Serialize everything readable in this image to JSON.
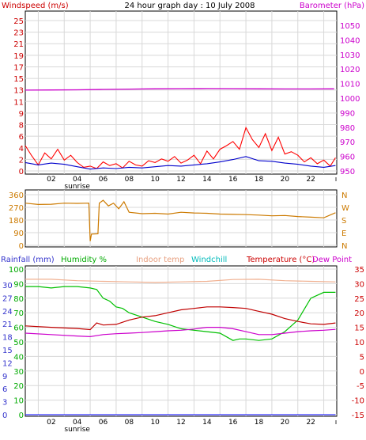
{
  "title": "24 hour graph day : 10 July 2008",
  "chart_data": [
    {
      "type": "line",
      "title": "24 hour graph day : 10 July 2008",
      "left_label": "Windspeed (m/s)",
      "right_label": "Barometer (hPa)",
      "left_ticks": [
        "25",
        "23",
        "21",
        "19",
        "17",
        "15",
        "13",
        "11",
        "9",
        "8",
        "6",
        "4",
        "2",
        "0"
      ],
      "right_ticks": [
        "1050",
        "1040",
        "1030",
        "1020",
        "1010",
        "1000",
        "990",
        "980",
        "970",
        "960",
        "950"
      ],
      "x_ticks": [
        "02",
        "04",
        "06",
        "08",
        "10",
        "12",
        "14",
        "16",
        "18",
        "20",
        "22"
      ],
      "x_note": "sunrise",
      "ylim_left": [
        0,
        25
      ],
      "ylim_right": [
        950,
        1050
      ],
      "series": [
        {
          "name": "Barometer (hPa)",
          "axis": "right",
          "color": "#cc00cc",
          "x": [
            0,
            2,
            4,
            6,
            8,
            10,
            12,
            14,
            16,
            18,
            20,
            22,
            23.8
          ],
          "values": [
            1005.5,
            1005.6,
            1005.7,
            1006.0,
            1006.2,
            1006.4,
            1006.5,
            1006.6,
            1006.5,
            1006.4,
            1006.3,
            1006.3,
            1006.4
          ]
        },
        {
          "name": "Windspeed (m/s)",
          "axis": "left",
          "color": "#ff0000",
          "x": [
            0,
            0.5,
            1,
            1.5,
            2,
            2.5,
            3,
            3.5,
            4,
            4.5,
            5,
            5.5,
            6,
            6.5,
            7,
            7.5,
            8,
            8.5,
            9,
            9.5,
            10,
            10.5,
            11,
            11.5,
            12,
            12.5,
            13,
            13.5,
            14,
            14.5,
            15,
            15.5,
            16,
            16.5,
            17,
            17.5,
            18,
            18.5,
            19,
            19.5,
            20,
            20.5,
            21,
            21.5,
            22,
            22.5,
            23,
            23.5,
            23.9
          ],
          "values": [
            4.2,
            2.5,
            1.0,
            3.0,
            2.0,
            3.6,
            1.8,
            2.6,
            1.4,
            0.6,
            0.8,
            0.4,
            1.5,
            0.9,
            1.2,
            0.5,
            1.6,
            1.0,
            0.8,
            1.7,
            1.4,
            2.0,
            1.6,
            2.4,
            1.3,
            1.8,
            2.6,
            1.2,
            3.3,
            2.0,
            3.6,
            4.2,
            4.9,
            3.6,
            7.2,
            5.2,
            3.9,
            6.2,
            3.4,
            5.6,
            2.8,
            3.2,
            2.6,
            1.5,
            2.2,
            1.2,
            1.8,
            0.8,
            2.2
          ]
        },
        {
          "name": "Average windspeed",
          "axis": "left",
          "color": "#0000cc",
          "x": [
            0,
            1,
            2,
            3,
            4,
            5,
            6,
            7,
            8,
            9,
            10,
            11,
            12,
            13,
            14,
            15,
            16,
            17,
            18,
            19,
            20,
            21,
            22,
            23,
            23.9
          ],
          "values": [
            1.4,
            1.0,
            1.3,
            1.1,
            0.7,
            0.3,
            0.5,
            0.4,
            0.6,
            0.5,
            0.7,
            0.9,
            0.8,
            1.0,
            1.2,
            1.5,
            1.9,
            2.4,
            1.7,
            1.6,
            1.3,
            1.1,
            0.8,
            0.6,
            0.9
          ]
        }
      ]
    },
    {
      "type": "line",
      "left_ticks": [
        "360",
        "270",
        "180",
        "90",
        "0"
      ],
      "right_ticks": [
        "N",
        "W",
        "S",
        "E",
        "N"
      ],
      "ylim": [
        0,
        360
      ],
      "series": [
        {
          "name": "Wind direction",
          "color": "#cc7a00",
          "x": [
            0,
            1,
            2,
            3,
            4,
            4.9,
            5.0,
            5.1,
            5.6,
            5.7,
            6.0,
            6.4,
            6.8,
            7.2,
            7.6,
            8,
            9,
            10,
            11,
            12,
            13,
            14,
            15,
            16,
            17,
            18,
            19,
            20,
            21,
            22,
            23,
            23.9
          ],
          "values": [
            300,
            290,
            292,
            300,
            298,
            300,
            30,
            80,
            82,
            300,
            320,
            280,
            300,
            260,
            310,
            235,
            225,
            228,
            222,
            235,
            230,
            228,
            222,
            220,
            218,
            215,
            210,
            212,
            205,
            200,
            196,
            232
          ]
        }
      ]
    },
    {
      "type": "line",
      "labels": [
        "Rainfall (mm)",
        "Humidity %",
        "Indoor temp",
        "Windchill",
        "Temperature (°C)",
        "Dew Point"
      ],
      "left_ticks_rain": [
        "30",
        "27",
        "24",
        "21",
        "18",
        "15",
        "12",
        "9",
        "6",
        "3",
        "0"
      ],
      "left_ticks_humidity": [
        "100",
        "90",
        "80",
        "70",
        "60",
        "50",
        "40",
        "30",
        "20",
        "10",
        "0"
      ],
      "right_ticks_temp": [
        "35",
        "30",
        "25",
        "20",
        "15",
        "10",
        "5",
        "0",
        "-5",
        "-10",
        "-15"
      ],
      "ylim_humidity": [
        0,
        100
      ],
      "ylim_temp": [
        -15,
        35
      ],
      "series": [
        {
          "name": "Indoor temp",
          "axis": "temp",
          "color": "#f0b090",
          "x": [
            0,
            2,
            4,
            6,
            8,
            10,
            12,
            14,
            16,
            18,
            20,
            22,
            23.9
          ],
          "values": [
            31.5,
            31.5,
            31.0,
            30.8,
            30.6,
            30.4,
            30.6,
            30.8,
            31.4,
            31.5,
            31.0,
            30.8,
            30.6
          ]
        },
        {
          "name": "Humidity %",
          "axis": "humidity",
          "color": "#00c000",
          "x": [
            0,
            1,
            2,
            3,
            4,
            5,
            5.5,
            6,
            6.5,
            7,
            7.5,
            8,
            9,
            10,
            11,
            12,
            13,
            14,
            15,
            16,
            16.5,
            17,
            18,
            19,
            20,
            21,
            22,
            23,
            23.9
          ],
          "values": [
            88,
            88,
            87,
            88,
            88,
            87,
            86,
            80,
            78,
            74,
            73,
            70,
            67,
            64,
            62,
            59,
            58,
            57,
            56,
            51,
            52,
            52,
            51,
            52,
            57,
            65,
            80,
            84,
            84
          ]
        },
        {
          "name": "Temperature (°C)",
          "axis": "temp",
          "color": "#c00000",
          "x": [
            0,
            2,
            4,
            5,
            5.5,
            6,
            7,
            8,
            9,
            10,
            11,
            12,
            13,
            14,
            15,
            16,
            17,
            18,
            19,
            20,
            21,
            22,
            23,
            23.9
          ],
          "values": [
            15.5,
            15.0,
            14.6,
            14.2,
            16.5,
            15.8,
            16.0,
            17.5,
            18.5,
            19.0,
            20.0,
            21.0,
            21.5,
            22.0,
            22.0,
            21.8,
            21.5,
            20.5,
            19.5,
            18.0,
            17.0,
            16.2,
            16.0,
            16.5
          ]
        },
        {
          "name": "Dew Point",
          "axis": "temp",
          "color": "#cc00cc",
          "x": [
            0,
            2,
            4,
            5,
            6,
            7,
            8,
            9,
            10,
            11,
            12,
            13,
            14,
            15,
            16,
            17,
            18,
            19,
            20,
            21,
            22,
            23,
            23.9
          ],
          "values": [
            13.0,
            12.5,
            12.0,
            11.8,
            12.5,
            12.8,
            13.0,
            13.2,
            13.5,
            13.8,
            14.0,
            14.4,
            15.0,
            15.0,
            14.5,
            13.5,
            12.5,
            12.5,
            13.0,
            13.5,
            13.8,
            14.0,
            14.3
          ]
        },
        {
          "name": "Rainfall (mm)",
          "axis": "rain",
          "color": "#3333ff",
          "x": [
            0,
            23.9
          ],
          "values": [
            0,
            0
          ]
        }
      ]
    }
  ],
  "colors": {
    "red": "#cc0000",
    "magenta": "#cc00cc",
    "blue": "#3333cc",
    "green": "#00aa00",
    "orange": "#cc7a00",
    "peach": "#e8a080",
    "cyan": "#00bbbb"
  }
}
